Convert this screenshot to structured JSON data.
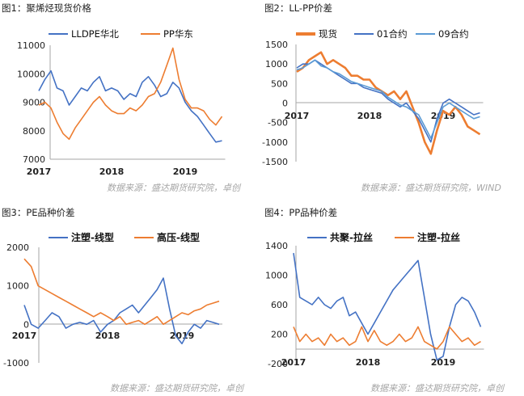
{
  "colors": {
    "blue": "#4472c4",
    "orange": "#ed7d31",
    "light_blue": "#5b9bd5",
    "axis": "#a6a6a6",
    "source": "#a6a6a6"
  },
  "chart_data": [
    {
      "type": "line",
      "title": "图1：聚烯烃现货价格",
      "source": "数据来源：盛达期货研究院，卓创",
      "x_ticks": [
        "2017",
        "2018",
        "2019"
      ],
      "y_ticks": [
        "11000",
        "10000",
        "9000",
        "8000",
        "7000"
      ],
      "ylim": [
        7000,
        11000
      ],
      "x_anchor_months": [
        0,
        12,
        24
      ],
      "series": [
        {
          "name": "LLDPE华北",
          "color": "#4472c4",
          "x_months": [
            0,
            1,
            2,
            3,
            4,
            5,
            6,
            7,
            8,
            9,
            10,
            11,
            12,
            13,
            14,
            15,
            16,
            17,
            18,
            19,
            20,
            21,
            22,
            23,
            24,
            25,
            26,
            27,
            28,
            29,
            30
          ],
          "values": [
            9400,
            9800,
            10100,
            9500,
            9400,
            8900,
            9200,
            9500,
            9400,
            9700,
            9900,
            9400,
            9500,
            9400,
            9100,
            9300,
            9200,
            9700,
            9900,
            9600,
            9200,
            9300,
            9700,
            9500,
            9000,
            8700,
            8500,
            8200,
            7900,
            7600,
            7650
          ]
        },
        {
          "name": "PP华东",
          "color": "#ed7d31",
          "x_months": [
            0,
            1,
            2,
            3,
            4,
            5,
            6,
            7,
            8,
            9,
            10,
            11,
            12,
            13,
            14,
            15,
            16,
            17,
            18,
            19,
            20,
            21,
            22,
            23,
            24,
            25,
            26,
            27,
            28,
            29,
            30
          ],
          "values": [
            8900,
            9000,
            8800,
            8300,
            7900,
            7700,
            8100,
            8400,
            8700,
            9000,
            9200,
            8900,
            8700,
            8600,
            8600,
            8800,
            8700,
            8900,
            9200,
            9300,
            9700,
            10300,
            10900,
            9800,
            9100,
            8800,
            8800,
            8700,
            8400,
            8200,
            8500
          ]
        }
      ]
    },
    {
      "type": "line",
      "title": "图2：LL-PP价差",
      "source": "数据来源：盛达期货研究院，WIND",
      "x_ticks": [
        "2017",
        "2018",
        "2019"
      ],
      "y_ticks": [
        "1500",
        "1000",
        "500",
        "0",
        "-500",
        "-1000",
        "-1500"
      ],
      "ylim": [
        -1500,
        1500
      ],
      "x_anchor_months": [
        0,
        12,
        24
      ],
      "series": [
        {
          "name": "现货",
          "color": "#ed7d31",
          "x_months": [
            0,
            1,
            2,
            3,
            4,
            5,
            6,
            7,
            8,
            9,
            10,
            11,
            12,
            13,
            14,
            15,
            16,
            17,
            18,
            19,
            20,
            21,
            22,
            23,
            24,
            25,
            26,
            27,
            28,
            29,
            30
          ],
          "values": [
            800,
            900,
            1100,
            1200,
            1300,
            1000,
            1100,
            1000,
            900,
            700,
            700,
            600,
            600,
            400,
            300,
            200,
            300,
            100,
            300,
            -100,
            -500,
            -1000,
            -1300,
            -700,
            -200,
            -300,
            -100,
            -300,
            -600,
            -700,
            -800
          ]
        },
        {
          "name": "01合约",
          "color": "#4472c4",
          "x_months": [
            0,
            1,
            2,
            3,
            4,
            5,
            6,
            7,
            8,
            9,
            10,
            11,
            12,
            13,
            14,
            15,
            16,
            17,
            18,
            19,
            20,
            21,
            22,
            23,
            24,
            25,
            26,
            27,
            28,
            29,
            30
          ],
          "values": [
            900,
            1000,
            1000,
            1100,
            1000,
            900,
            800,
            700,
            600,
            500,
            500,
            400,
            350,
            300,
            250,
            100,
            0,
            -100,
            0,
            -200,
            -400,
            -700,
            -1000,
            -400,
            0,
            100,
            0,
            -100,
            -200,
            -300,
            -250
          ]
        },
        {
          "name": "09合约",
          "color": "#5b9bd5",
          "x_months": [
            0,
            1,
            2,
            3,
            4,
            5,
            6,
            7,
            8,
            9,
            10,
            11,
            12,
            13,
            14,
            15,
            16,
            17,
            18,
            19,
            20,
            21,
            22,
            23,
            24,
            25,
            26,
            27,
            28,
            29,
            30
          ],
          "values": [
            850,
            900,
            1000,
            1100,
            950,
            900,
            800,
            750,
            650,
            550,
            500,
            450,
            400,
            350,
            300,
            150,
            50,
            -50,
            -100,
            -200,
            -300,
            -600,
            -900,
            -500,
            -100,
            0,
            -100,
            -200,
            -300,
            -400,
            -350
          ]
        }
      ]
    },
    {
      "type": "line",
      "title": "图3：PE品种价差",
      "source": "数据来源：盛达期货研究院，卓创",
      "x_ticks": [
        "2017",
        "2018",
        "2019"
      ],
      "y_ticks": [
        "2000",
        "1000",
        "0",
        "-1000"
      ],
      "ylim": [
        -1000,
        2000
      ],
      "x_anchor_months": [
        0,
        12,
        24
      ],
      "series": [
        {
          "name": "注塑-线型",
          "color": "#4472c4",
          "x_months": [
            0,
            1,
            2,
            3,
            4,
            5,
            6,
            7,
            8,
            9,
            10,
            11,
            12,
            13,
            14,
            15,
            16,
            17,
            18,
            19,
            20,
            21,
            22,
            23,
            24,
            25,
            26,
            27,
            28,
            29,
            30
          ],
          "values": [
            500,
            0,
            -100,
            100,
            300,
            200,
            -100,
            0,
            50,
            0,
            100,
            -200,
            0,
            100,
            300,
            400,
            500,
            300,
            500,
            700,
            900,
            1200,
            400,
            -300,
            -500,
            -200,
            0,
            -100,
            100,
            50,
            0
          ]
        },
        {
          "name": "高压-线型",
          "color": "#ed7d31",
          "x_months": [
            0,
            1,
            2,
            3,
            4,
            5,
            6,
            7,
            8,
            9,
            10,
            11,
            12,
            13,
            14,
            15,
            16,
            17,
            18,
            19,
            20,
            21,
            22,
            23,
            24,
            25,
            26,
            27,
            28,
            29,
            30
          ],
          "values": [
            1700,
            1500,
            1000,
            900,
            800,
            700,
            600,
            500,
            400,
            300,
            200,
            300,
            200,
            100,
            200,
            0,
            50,
            100,
            0,
            100,
            200,
            0,
            100,
            200,
            300,
            250,
            350,
            400,
            500,
            550,
            600
          ]
        }
      ]
    },
    {
      "type": "line",
      "title": "图4：PP品种价差",
      "source": "数据来源：盛达期货研究院，卓创",
      "x_ticks": [
        "2017",
        "2018",
        "2019"
      ],
      "y_ticks": [
        "1400",
        "1000",
        "600",
        "200",
        "-200"
      ],
      "ylim": [
        -200,
        1400
      ],
      "x_anchor_months": [
        0,
        12,
        24
      ],
      "series": [
        {
          "name": "共聚-拉丝",
          "color": "#4472c4",
          "x_months": [
            0,
            1,
            2,
            3,
            4,
            5,
            6,
            7,
            8,
            9,
            10,
            11,
            12,
            13,
            14,
            15,
            16,
            17,
            18,
            19,
            20,
            21,
            22,
            23,
            24,
            25,
            26,
            27,
            28,
            29,
            30
          ],
          "values": [
            1300,
            700,
            650,
            600,
            700,
            600,
            550,
            650,
            700,
            450,
            500,
            350,
            200,
            350,
            500,
            650,
            800,
            900,
            1000,
            1100,
            1200,
            700,
            200,
            -150,
            -100,
            300,
            600,
            700,
            650,
            500,
            300
          ]
        },
        {
          "name": "注塑-拉丝",
          "color": "#ed7d31",
          "x_months": [
            0,
            1,
            2,
            3,
            4,
            5,
            6,
            7,
            8,
            9,
            10,
            11,
            12,
            13,
            14,
            15,
            16,
            17,
            18,
            19,
            20,
            21,
            22,
            23,
            24,
            25,
            26,
            27,
            28,
            29,
            30
          ],
          "values": [
            300,
            100,
            200,
            100,
            150,
            50,
            200,
            100,
            150,
            50,
            100,
            300,
            100,
            250,
            100,
            50,
            100,
            200,
            100,
            150,
            300,
            100,
            50,
            0,
            100,
            300,
            200,
            100,
            150,
            50,
            100
          ]
        }
      ]
    }
  ]
}
